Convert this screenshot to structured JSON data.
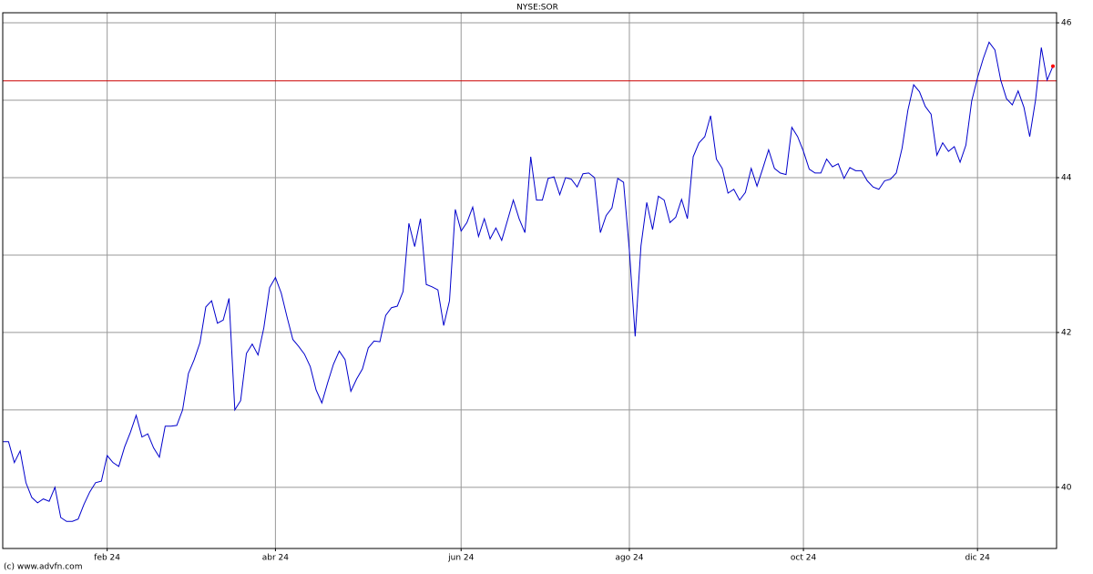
{
  "chart_data": {
    "type": "line",
    "title": "NYSE:SOR",
    "credit": "(c) www.advfn.com",
    "categories": [
      null,
      null,
      null,
      null,
      null,
      null,
      null,
      null,
      null,
      null,
      null,
      null,
      null,
      null,
      null,
      null,
      null,
      null,
      "feb 24",
      null,
      null,
      null,
      null,
      null,
      null,
      null,
      null,
      null,
      null,
      null,
      null,
      null,
      null,
      null,
      null,
      null,
      null,
      null,
      null,
      null,
      null,
      null,
      null,
      null,
      null,
      null,
      null,
      "abr 24",
      null,
      null,
      null,
      null,
      null,
      null,
      null,
      null,
      null,
      null,
      null,
      null,
      null,
      null,
      null,
      null,
      null,
      null,
      null,
      null,
      null,
      null,
      null,
      null,
      null,
      null,
      null,
      null,
      null,
      null,
      null,
      "jun 24",
      null,
      null,
      null,
      null,
      null,
      null,
      null,
      null,
      null,
      null,
      null,
      null,
      null,
      null,
      null,
      null,
      null,
      null,
      null,
      null,
      null,
      null,
      null,
      null,
      null,
      null,
      null,
      null,
      "ago 24",
      null,
      null,
      null,
      null,
      null,
      null,
      null,
      null,
      null,
      null,
      null,
      null,
      null,
      null,
      null,
      null,
      null,
      null,
      null,
      null,
      null,
      null,
      null,
      null,
      null,
      null,
      null,
      null,
      null,
      "oct 24",
      null,
      null,
      null,
      null,
      null,
      null,
      null,
      null,
      null,
      null,
      null,
      null,
      null,
      null,
      null,
      null,
      null,
      null,
      null,
      null,
      null,
      null,
      null,
      null,
      null,
      null,
      null,
      null,
      null,
      "dic 24",
      null,
      null,
      null,
      null,
      null,
      null,
      null,
      null,
      null,
      null,
      null,
      null,
      null
    ],
    "series": [
      {
        "name": "NYSE:SOR",
        "color": "#0000cc",
        "values": [
          40.59,
          40.59,
          40.32,
          40.47,
          40.06,
          39.87,
          39.8,
          39.85,
          39.82,
          40.0,
          39.61,
          39.56,
          39.56,
          39.59,
          39.78,
          39.94,
          40.06,
          40.08,
          40.41,
          40.32,
          40.27,
          40.52,
          40.71,
          40.93,
          40.65,
          40.69,
          40.51,
          40.39,
          40.79,
          40.79,
          40.8,
          41.0,
          41.47,
          41.65,
          41.87,
          42.33,
          42.41,
          42.12,
          42.16,
          42.44,
          41.0,
          41.12,
          41.73,
          41.85,
          41.71,
          42.06,
          42.58,
          42.71,
          42.51,
          42.2,
          41.91,
          41.82,
          41.72,
          41.56,
          41.26,
          41.09,
          41.35,
          41.59,
          41.76,
          41.65,
          41.24,
          41.4,
          41.53,
          41.8,
          41.89,
          41.88,
          42.22,
          42.32,
          42.34,
          42.53,
          43.41,
          43.11,
          43.47,
          42.62,
          42.59,
          42.55,
          42.09,
          42.41,
          43.59,
          43.31,
          43.42,
          43.62,
          43.24,
          43.47,
          43.21,
          43.35,
          43.19,
          43.45,
          43.71,
          43.47,
          43.29,
          44.27,
          43.71,
          43.71,
          43.99,
          44.01,
          43.78,
          44.0,
          43.98,
          43.88,
          44.05,
          44.06,
          44.0,
          43.29,
          43.51,
          43.61,
          43.99,
          43.94,
          43.06,
          41.95,
          43.12,
          43.68,
          43.33,
          43.76,
          43.71,
          43.42,
          43.49,
          43.72,
          43.47,
          44.27,
          44.45,
          44.53,
          44.8,
          44.24,
          44.12,
          43.8,
          43.85,
          43.71,
          43.81,
          44.12,
          43.89,
          44.12,
          44.36,
          44.12,
          44.06,
          44.04,
          44.65,
          44.53,
          44.34,
          44.11,
          44.06,
          44.06,
          44.24,
          44.14,
          44.18,
          43.99,
          44.13,
          44.09,
          44.09,
          43.96,
          43.88,
          43.85,
          43.96,
          43.98,
          44.06,
          44.38,
          44.87,
          45.2,
          45.11,
          44.92,
          44.82,
          44.29,
          44.45,
          44.34,
          44.4,
          44.2,
          44.42,
          44.99,
          45.29,
          45.54,
          45.75,
          45.65,
          45.26,
          45.02,
          44.94,
          45.12,
          44.91,
          44.53,
          45.0,
          45.68,
          45.26,
          45.44
        ]
      }
    ],
    "last_point_color": "#ff0000",
    "reference_line": {
      "value": 45.25,
      "color": "#cc0000"
    },
    "ylim": [
      39.21,
      46.13
    ],
    "yticks": [
      40,
      42,
      44,
      46
    ],
    "minor_yticks": [
      41,
      43,
      45
    ],
    "y_axis_side": "right",
    "grid": true,
    "grid_color": "#999999"
  }
}
